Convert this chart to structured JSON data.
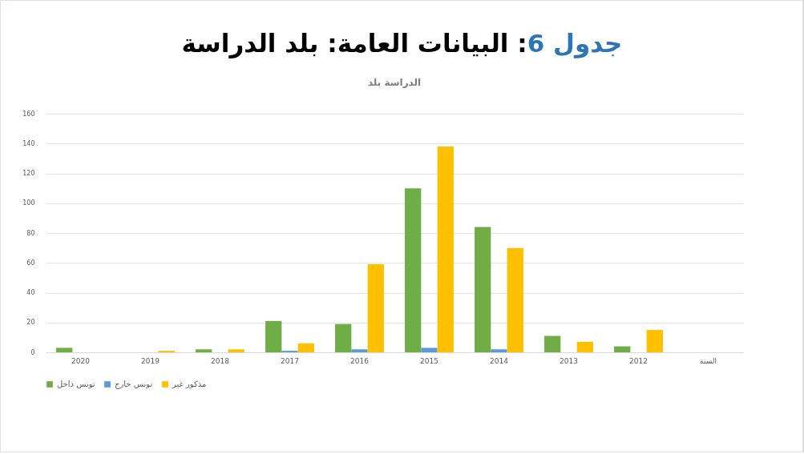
{
  "chart_data": {
    "type": "bar",
    "title": "جدول 6: البيانات العامة: بلد الدراسة",
    "subtitle": "الدراسة بلد",
    "categories": [
      "2020",
      "2019",
      "2018",
      "2017",
      "2016",
      "2015",
      "2014",
      "2013",
      "2012",
      "السنة"
    ],
    "series": [
      {
        "name": "تونس داخل",
        "color": "#70ad47",
        "values": [
          3,
          null,
          2,
          21,
          19,
          110,
          84,
          11,
          4,
          null
        ]
      },
      {
        "name": "تونس خارج",
        "color": "#5b9bd5",
        "values": [
          null,
          null,
          null,
          1,
          2,
          3,
          2,
          null,
          null,
          null
        ]
      },
      {
        "name": "مذكور غير",
        "color": "#ffc000",
        "values": [
          null,
          1,
          2,
          6,
          59,
          138,
          70,
          7,
          15,
          null
        ]
      }
    ],
    "ylim": [
      0,
      160
    ],
    "yticks": [
      0,
      20,
      40,
      60,
      80,
      100,
      120,
      140,
      160
    ],
    "grid": "y",
    "legend": "bottom"
  }
}
